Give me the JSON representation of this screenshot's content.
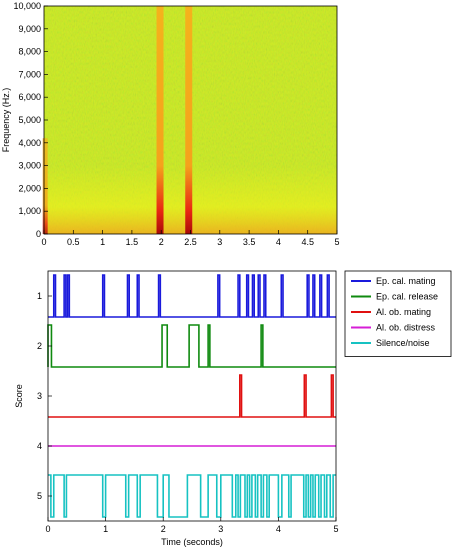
{
  "chart_data": [
    {
      "type": "heatmap",
      "subtype": "spectrogram",
      "title": "",
      "xlabel": "",
      "ylabel": "Frequency (Hz.)",
      "xlim": [
        0,
        5
      ],
      "ylim": [
        0,
        10000
      ],
      "x_ticks": [
        "0",
        "0.5",
        "1",
        "1.5",
        "2",
        "2.5",
        "3",
        "3.5",
        "4",
        "4.5",
        "5"
      ],
      "y_ticks": [
        "0",
        "1,000",
        "2,000",
        "3,000",
        "4,000",
        "5,000",
        "6,000",
        "7,000",
        "8,000",
        "9,000",
        "10,000"
      ],
      "colormap": [
        "#2e9c1e",
        "#bfe81c",
        "#f6f21a",
        "#f5a21c",
        "#e82612",
        "#a80a08"
      ],
      "background_color": "#cfea22",
      "events": [
        {
          "time": 0.02,
          "fmax": 4200,
          "intensity": 0.8
        },
        {
          "time": 1.98,
          "fmax": 10000,
          "intensity": 1.0
        },
        {
          "time": 2.47,
          "fmax": 10000,
          "intensity": 1.0
        }
      ],
      "grid": false
    },
    {
      "type": "line",
      "title": "",
      "xlabel": "Time (seconds)",
      "ylabel": "Score",
      "xlim": [
        0,
        5
      ],
      "x_ticks": [
        "0",
        "1",
        "2",
        "3",
        "4",
        "5"
      ],
      "y_ticks": [
        "1",
        "2",
        "3",
        "4",
        "5"
      ],
      "legend_position": "right",
      "series": [
        {
          "name": "Ep. cal. mating",
          "color": "#1a1adc",
          "row": 1,
          "baseline": "low",
          "pulses": [
            [
              0.1,
              0.13
            ],
            [
              0.28,
              0.31
            ],
            [
              0.34,
              0.37
            ],
            [
              0.95,
              0.98
            ],
            [
              1.38,
              1.41
            ],
            [
              1.55,
              1.58
            ],
            [
              1.92,
              1.95
            ],
            [
              2.95,
              2.98
            ],
            [
              3.3,
              3.33
            ],
            [
              3.45,
              3.48
            ],
            [
              3.55,
              3.58
            ],
            [
              3.65,
              3.68
            ],
            [
              3.75,
              3.78
            ],
            [
              4.05,
              4.08
            ],
            [
              4.5,
              4.53
            ],
            [
              4.6,
              4.63
            ],
            [
              4.72,
              4.75
            ],
            [
              4.85,
              4.88
            ]
          ]
        },
        {
          "name": "Ep. cal. release",
          "color": "#0f8a0f",
          "row": 2,
          "baseline": "low",
          "pulses": [
            [
              0.0,
              0.06
            ],
            [
              1.98,
              2.07
            ],
            [
              2.45,
              2.62
            ],
            [
              2.78,
              2.81
            ],
            [
              3.7,
              3.73
            ]
          ]
        },
        {
          "name": "Al. ob. mating",
          "color": "#e01010",
          "row": 3,
          "baseline": "low",
          "pulses": [
            [
              3.33,
              3.36
            ],
            [
              4.45,
              4.48
            ],
            [
              4.92,
              4.95
            ]
          ]
        },
        {
          "name": "Al. ob. distress",
          "color": "#d61ed6",
          "row": 4,
          "baseline": "flat",
          "pulses": []
        },
        {
          "name": "Silence/noise",
          "color": "#16c2c2",
          "row": 5,
          "baseline": "high",
          "pulses": [
            [
              0.05,
              0.1
            ],
            [
              0.28,
              0.32
            ],
            [
              0.95,
              1.0
            ],
            [
              1.35,
              1.4
            ],
            [
              1.55,
              1.6
            ],
            [
              1.9,
              2.0
            ],
            [
              2.1,
              2.42
            ],
            [
              2.65,
              2.78
            ],
            [
              2.93,
              3.0
            ],
            [
              3.2,
              3.26
            ],
            [
              3.3,
              3.34
            ],
            [
              3.42,
              3.46
            ],
            [
              3.5,
              3.54
            ],
            [
              3.6,
              3.64
            ],
            [
              3.7,
              3.74
            ],
            [
              3.8,
              3.84
            ],
            [
              4.0,
              4.06
            ],
            [
              4.18,
              4.22
            ],
            [
              4.44,
              4.48
            ],
            [
              4.52,
              4.56
            ],
            [
              4.6,
              4.64
            ],
            [
              4.7,
              4.74
            ],
            [
              4.8,
              4.84
            ],
            [
              4.9,
              4.95
            ]
          ]
        }
      ],
      "grid": false
    }
  ]
}
